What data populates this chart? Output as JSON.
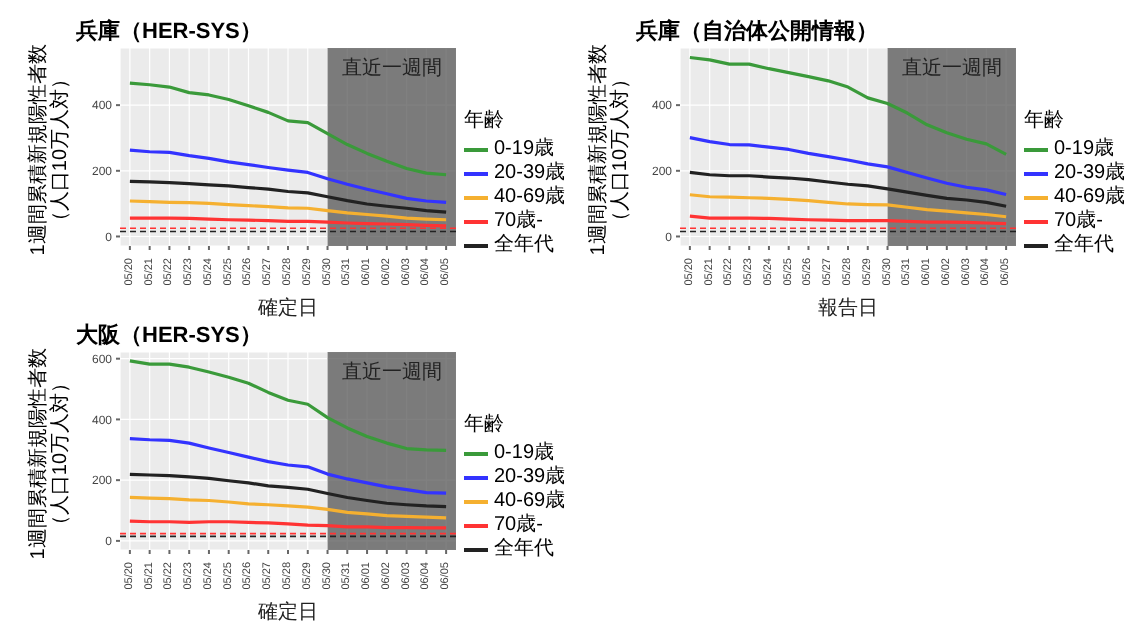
{
  "chart_data": [
    {
      "type": "line",
      "title": "兵庫（HER-SYS）",
      "xlabel": "確定日",
      "ylabel": "1週間累積新規陽性者数（人口10万人対）",
      "legend_title": "年齢",
      "legend": "right",
      "grid": true,
      "marker": "none",
      "line_style": "solid",
      "categories": [
        "05/20",
        "05/21",
        "05/22",
        "05/23",
        "05/24",
        "05/25",
        "05/26",
        "05/27",
        "05/28",
        "05/29",
        "05/30",
        "05/31",
        "06/01",
        "06/02",
        "06/03",
        "06/04",
        "06/05"
      ],
      "ylim": [
        -29,
        574
      ],
      "yticks": [
        0,
        200,
        400
      ],
      "series": [
        {
          "name": "0-19歳",
          "color": "#3a9a3a",
          "values": [
            467,
            462,
            455,
            438,
            431,
            417,
            398,
            378,
            352,
            347,
            313,
            280,
            253,
            229,
            207,
            193,
            188
          ]
        },
        {
          "name": "20-39歳",
          "color": "#3333ff",
          "values": [
            263,
            258,
            256,
            246,
            238,
            227,
            219,
            210,
            202,
            195,
            176,
            159,
            144,
            130,
            116,
            108,
            104
          ]
        },
        {
          "name": "40-69歳",
          "color": "#f5b030",
          "values": [
            108,
            106,
            104,
            103,
            101,
            97,
            94,
            91,
            87,
            86,
            79,
            72,
            67,
            62,
            56,
            53,
            51
          ]
        },
        {
          "name": "70歳-",
          "color": "#ff3333",
          "values": [
            56,
            56,
            56,
            55,
            53,
            51,
            50,
            48,
            46,
            46,
            44,
            41,
            39,
            38,
            36,
            34,
            32
          ]
        },
        {
          "name": "全年代",
          "color": "#222222",
          "values": [
            168,
            166,
            164,
            161,
            157,
            154,
            149,
            144,
            137,
            133,
            121,
            109,
            99,
            92,
            86,
            79,
            74
          ]
        }
      ],
      "ref_lines": [
        {
          "axis": "y",
          "value": 25,
          "color": "#ff3333",
          "line_style": "dashed"
        },
        {
          "axis": "y",
          "value": 15,
          "color": "#222222",
          "line_style": "dashed"
        }
      ],
      "bands": [
        {
          "axis": "x",
          "from": "05/30",
          "to": "06/05",
          "label": "直近一週間",
          "color": "#555555"
        }
      ]
    },
    {
      "type": "line",
      "title": "兵庫（自治体公開情報）",
      "xlabel": "報告日",
      "ylabel": "1週間累積新規陽性者数（人口10万人対）",
      "legend_title": "年齢",
      "legend": "right",
      "grid": true,
      "marker": "none",
      "line_style": "solid",
      "categories": [
        "05/20",
        "05/21",
        "05/22",
        "05/23",
        "05/24",
        "05/25",
        "05/26",
        "05/27",
        "05/28",
        "05/29",
        "05/30",
        "05/31",
        "06/01",
        "06/02",
        "06/03",
        "06/04",
        "06/05"
      ],
      "ylim": [
        -29,
        574
      ],
      "yticks": [
        0,
        200,
        400
      ],
      "series": [
        {
          "name": "0-19歳",
          "color": "#3a9a3a",
          "values": [
            545,
            538,
            525,
            525,
            511,
            499,
            487,
            474,
            455,
            422,
            405,
            376,
            340,
            316,
            296,
            282,
            250
          ]
        },
        {
          "name": "20-39歳",
          "color": "#3333ff",
          "values": [
            301,
            289,
            280,
            279,
            272,
            265,
            253,
            243,
            233,
            221,
            212,
            195,
            178,
            162,
            150,
            142,
            128
          ]
        },
        {
          "name": "40-69歳",
          "color": "#f5b030",
          "values": [
            127,
            121,
            120,
            118,
            116,
            113,
            109,
            104,
            99,
            97,
            96,
            89,
            82,
            77,
            72,
            67,
            60
          ]
        },
        {
          "name": "70歳-",
          "color": "#ff3333",
          "values": [
            62,
            56,
            56,
            56,
            55,
            53,
            51,
            50,
            48,
            48,
            48,
            46,
            44,
            44,
            43,
            41,
            39
          ]
        },
        {
          "name": "全年代",
          "color": "#222222",
          "values": [
            195,
            188,
            185,
            185,
            181,
            178,
            173,
            166,
            159,
            154,
            145,
            135,
            125,
            116,
            111,
            104,
            92
          ]
        }
      ],
      "ref_lines": [
        {
          "axis": "y",
          "value": 25,
          "color": "#ff3333",
          "line_style": "dashed"
        },
        {
          "axis": "y",
          "value": 15,
          "color": "#222222",
          "line_style": "dashed"
        }
      ],
      "bands": [
        {
          "axis": "x",
          "from": "05/30",
          "to": "06/05",
          "label": "直近一週間",
          "color": "#555555"
        }
      ]
    },
    {
      "type": "line",
      "title": "大阪（HER-SYS）",
      "xlabel": "確定日",
      "ylabel": "1週間累積新規陽性者数（人口10万人対）",
      "legend_title": "年齢",
      "legend": "right",
      "grid": true,
      "marker": "none",
      "line_style": "solid",
      "categories": [
        "05/20",
        "05/21",
        "05/22",
        "05/23",
        "05/24",
        "05/25",
        "05/26",
        "05/27",
        "05/28",
        "05/29",
        "05/30",
        "05/31",
        "06/01",
        "06/02",
        "06/03",
        "06/04",
        "06/05"
      ],
      "ylim": [
        -30,
        622
      ],
      "yticks": [
        0,
        200,
        400,
        600
      ],
      "series": [
        {
          "name": "0-19歳",
          "color": "#3a9a3a",
          "values": [
            593,
            582,
            582,
            572,
            556,
            539,
            519,
            489,
            463,
            450,
            406,
            372,
            344,
            322,
            304,
            300,
            298
          ]
        },
        {
          "name": "20-39歳",
          "color": "#3333ff",
          "values": [
            337,
            333,
            331,
            322,
            306,
            291,
            276,
            261,
            250,
            244,
            220,
            204,
            191,
            178,
            169,
            159,
            157
          ]
        },
        {
          "name": "40-69歳",
          "color": "#f5b030",
          "values": [
            143,
            141,
            139,
            135,
            133,
            128,
            122,
            119,
            115,
            111,
            104,
            94,
            89,
            83,
            81,
            78,
            76
          ]
        },
        {
          "name": "70歳-",
          "color": "#ff3333",
          "values": [
            65,
            63,
            63,
            61,
            63,
            63,
            61,
            59,
            56,
            52,
            50,
            46,
            46,
            44,
            44,
            43,
            43
          ]
        },
        {
          "name": "全年代",
          "color": "#222222",
          "values": [
            219,
            217,
            215,
            211,
            206,
            198,
            191,
            181,
            176,
            170,
            156,
            143,
            133,
            124,
            119,
            115,
            113
          ]
        }
      ],
      "ref_lines": [
        {
          "axis": "y",
          "value": 24,
          "color": "#ff3333",
          "line_style": "dashed"
        },
        {
          "axis": "y",
          "value": 15,
          "color": "#222222",
          "line_style": "dashed"
        }
      ],
      "bands": [
        {
          "axis": "x",
          "from": "05/30",
          "to": "06/05",
          "label": "直近一週間",
          "color": "#555555"
        }
      ]
    }
  ]
}
